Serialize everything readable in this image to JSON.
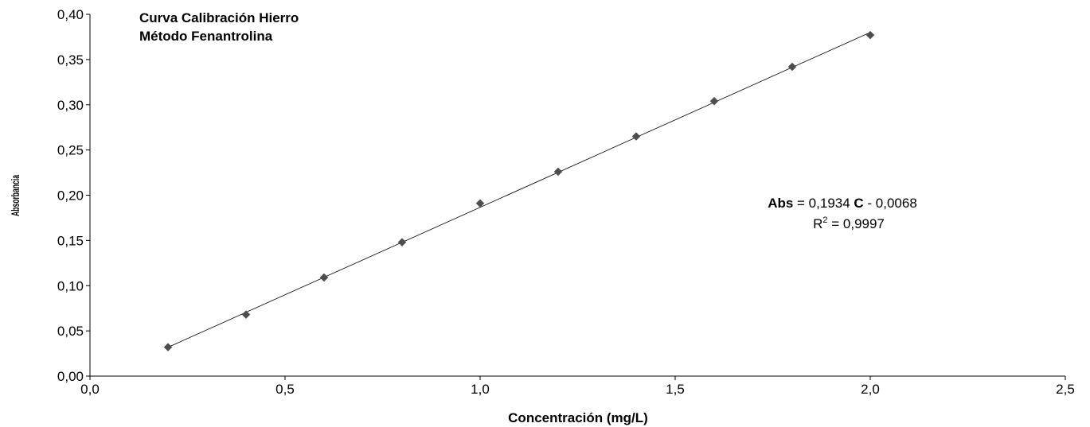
{
  "chart_data": {
    "type": "scatter",
    "title_lines": [
      "Curva Calibración Hierro",
      "Método Fenantrolina"
    ],
    "xlabel": "Concentración (mg/L)",
    "ylabel": "Absorbancia",
    "xlim": [
      0,
      2.5
    ],
    "ylim": [
      0,
      0.4
    ],
    "x_ticks": [
      "0,0",
      "0,5",
      "1,0",
      "1,5",
      "2,0",
      "2,5"
    ],
    "x_tick_values": [
      0,
      0.5,
      1.0,
      1.5,
      2.0,
      2.5
    ],
    "y_ticks": [
      "0,00",
      "0,05",
      "0,10",
      "0,15",
      "0,20",
      "0,25",
      "0,30",
      "0,35",
      "0,40"
    ],
    "y_tick_values": [
      0,
      0.05,
      0.1,
      0.15,
      0.2,
      0.25,
      0.3,
      0.35,
      0.4
    ],
    "grid": false,
    "series": [
      {
        "x": [
          0.2,
          0.4,
          0.6,
          0.8,
          1.0,
          1.2,
          1.4,
          1.6,
          1.8,
          2.0
        ],
        "y": [
          0.032,
          0.068,
          0.109,
          0.148,
          0.191,
          0.226,
          0.265,
          0.304,
          0.342,
          0.377
        ],
        "marker": "diamond",
        "color": "#4d4d4d"
      }
    ],
    "trendline": {
      "type": "linear",
      "slope": 0.1934,
      "intercept": -0.0068,
      "x_range": [
        0.2,
        2.0
      ],
      "color": "#000000"
    },
    "equation": {
      "abs_label": "Abs",
      "equals": " = 0,1934 ",
      "c_label": "C",
      "rest": " - 0,0068",
      "r2_prefix": "R",
      "r2_sup": "2",
      "r2_value": " = 0,9997"
    }
  }
}
